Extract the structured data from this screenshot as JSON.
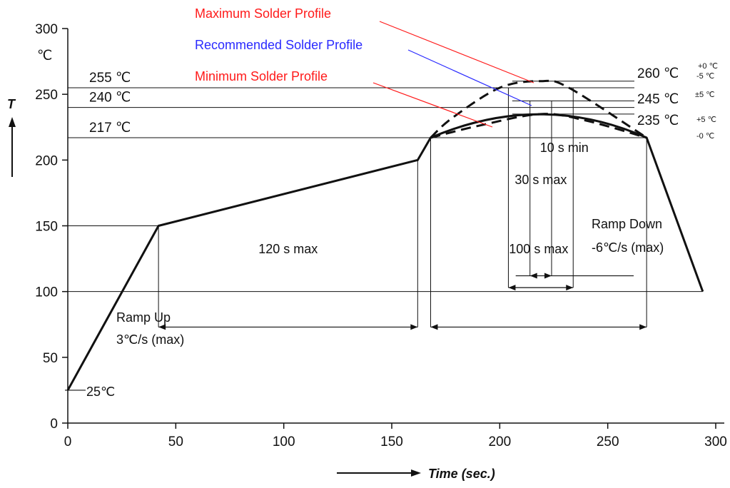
{
  "colors": {
    "maximum": "#ff1a1a",
    "recommended": "#2a2aff",
    "minimum": "#ff1a1a",
    "ink": "#111111"
  },
  "chart_data": {
    "type": "line",
    "title": "",
    "xlabel": "Time (sec.)",
    "ylabel": "T",
    "xlim": [
      0,
      300
    ],
    "ylim": [
      0,
      300
    ],
    "x_ticks": [
      "0",
      "50",
      "100",
      "150",
      "200",
      "250",
      "300"
    ],
    "y_ticks": [
      "0",
      "50",
      "100",
      "150",
      "200",
      "250",
      "300"
    ],
    "y_unit": "℃",
    "series": [
      {
        "name": "Recommended Solder Profile",
        "style": "solid",
        "color": "#2a2aff",
        "x": [
          0,
          42,
          162,
          168,
          219,
          268,
          294
        ],
        "y": [
          25,
          150,
          200,
          217,
          245,
          217,
          100
        ]
      },
      {
        "name": "Maximum Solder Profile",
        "style": "dashed",
        "color": "#ff1a1a",
        "x": [
          168,
          178,
          200,
          219,
          232,
          268
        ],
        "y": [
          217,
          232,
          255,
          260,
          255,
          217
        ]
      },
      {
        "name": "Minimum Solder Profile",
        "style": "dashed",
        "color": "#ff1a1a",
        "x": [
          168,
          190,
          219,
          240,
          268
        ],
        "y": [
          217,
          226,
          235,
          230,
          217
        ]
      }
    ],
    "levels": [
      {
        "value": 255,
        "label": "255 ℃"
      },
      {
        "value": 240,
        "label": "240 ℃"
      },
      {
        "value": 217,
        "label": "217 ℃"
      },
      {
        "value": 150,
        "label": ""
      },
      {
        "value": 100,
        "label": ""
      }
    ],
    "right_labels": [
      {
        "value": 260,
        "text": "260 ℃",
        "sup": "+0 ℃",
        "sub": "-5 ℃"
      },
      {
        "value": 245,
        "text": "245 ℃",
        "sup": "±5 ℃",
        "sub": ""
      },
      {
        "value": 235,
        "text": "235 ℃",
        "sup": "+5 ℃",
        "sub": "-0 ℃"
      }
    ],
    "start_label": "25℃",
    "durations": [
      {
        "label": "120 s max",
        "x0": 42,
        "x1": 162
      },
      {
        "label": "100 s max",
        "x0": 168,
        "x1": 268
      },
      {
        "label": "10 s min",
        "x0": 214,
        "x1": 224
      },
      {
        "label": "30 s max",
        "x0": 204,
        "x1": 234
      }
    ],
    "annotations": {
      "ramp_up_1": "Ramp Up",
      "ramp_up_2": "3℃/s (max)",
      "ramp_down_1": "Ramp Down",
      "ramp_down_2": "-6℃/s (max)"
    }
  }
}
